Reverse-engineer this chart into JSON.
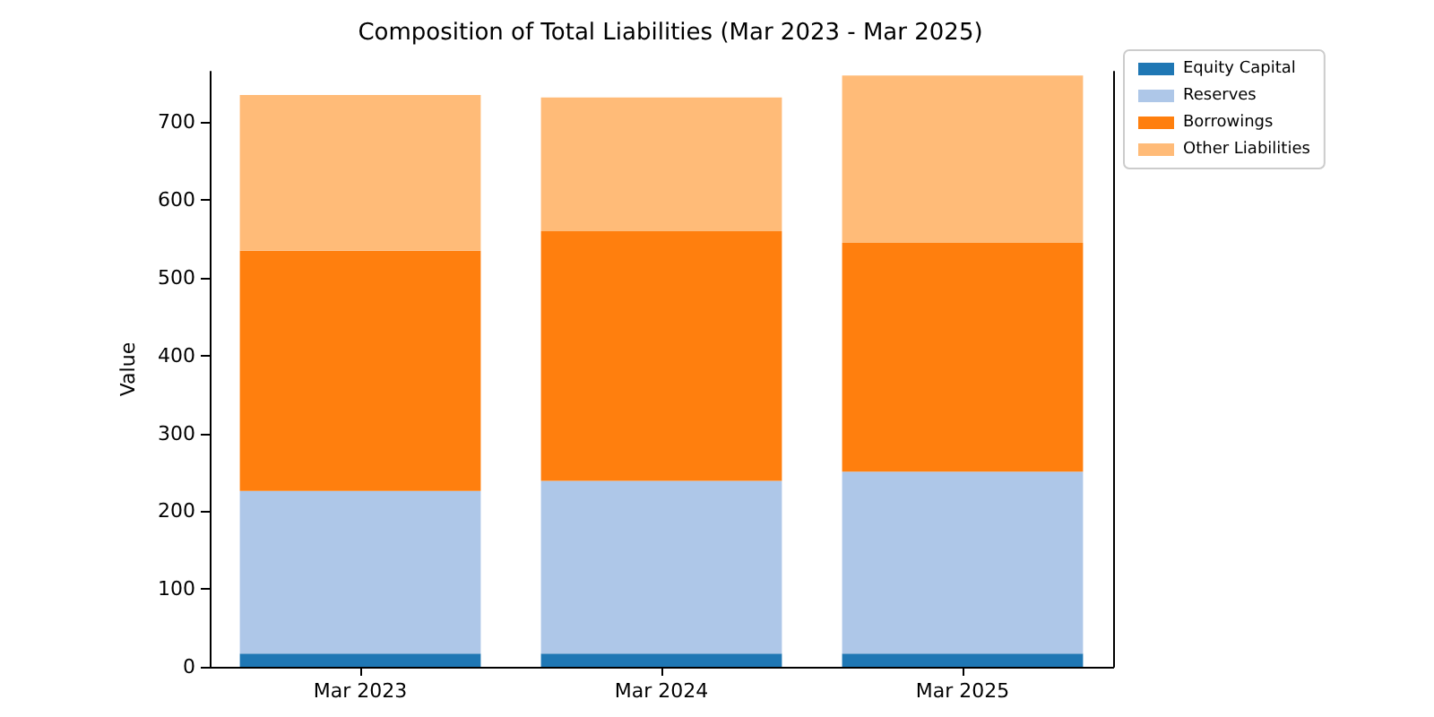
{
  "chart_data": {
    "type": "bar",
    "title": "Composition of Total Liabilities (Mar 2023 - Mar 2025)",
    "ylabel": "Value",
    "categories": [
      "Mar 2023",
      "Mar 2024",
      "Mar 2025"
    ],
    "stacked": true,
    "series": [
      {
        "name": "Equity Capital",
        "color": "#1f77b4",
        "values": [
          17,
          17,
          17
        ]
      },
      {
        "name": "Reserves",
        "color": "#aec7e8",
        "values": [
          209,
          222,
          234
        ]
      },
      {
        "name": "Borrowings",
        "color": "#ff7f0e",
        "values": [
          309,
          321,
          294
        ]
      },
      {
        "name": "Other Liabilities",
        "color": "#ffbb78",
        "values": [
          200,
          172,
          215
        ]
      }
    ],
    "ylim": [
      0,
      765
    ],
    "yticks": [
      0,
      100,
      200,
      300,
      400,
      500,
      600,
      700
    ],
    "grid": false,
    "legend": "top right"
  }
}
